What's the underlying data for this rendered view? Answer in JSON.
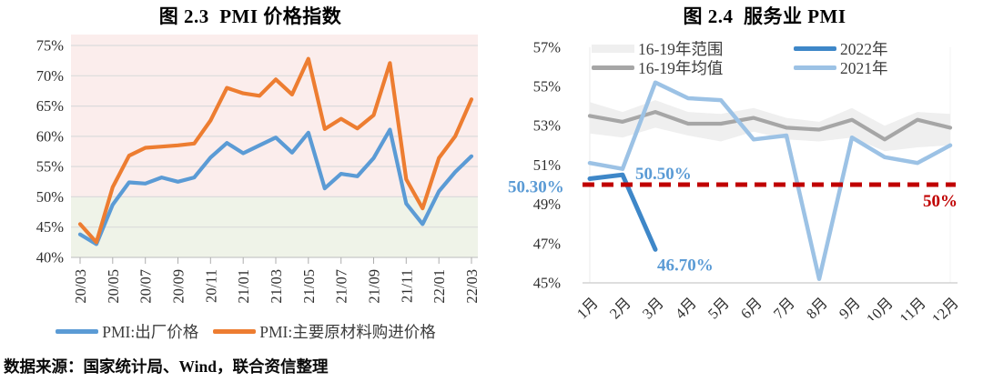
{
  "page": {
    "source_note": "数据来源：国家统计局、Wind，联合资信整理"
  },
  "chart_data": [
    {
      "type": "line",
      "title": "图 2.3  PMI 价格指数",
      "ylim": [
        40,
        75
      ],
      "y_ticks": [
        40,
        45,
        50,
        55,
        60,
        65,
        70,
        75
      ],
      "y_tick_suffix": "%",
      "threshold": 50,
      "bg_above_threshold": "#FBEDEC",
      "bg_below_threshold": "#EFF3E8",
      "grid": true,
      "legend_position": "bottom",
      "x_tick_labels": [
        "20/03",
        "20/05",
        "20/07",
        "20/09",
        "20/11",
        "21/01",
        "21/03",
        "21/05",
        "21/07",
        "21/09",
        "21/11",
        "22/01",
        "22/03"
      ],
      "series": [
        {
          "name": "PMI:出厂价格",
          "color": "#5B9BD5",
          "values": [
            43.8,
            42.2,
            48.7,
            52.4,
            52.2,
            53.2,
            52.5,
            53.2,
            56.5,
            58.9,
            57.2,
            58.5,
            59.8,
            57.3,
            60.6,
            51.4,
            53.8,
            53.4,
            56.4,
            61.1,
            48.9,
            45.5,
            50.9,
            54.1,
            56.7
          ]
        },
        {
          "name": "PMI:主要原材料购进价格",
          "color": "#ED7D31",
          "values": [
            45.5,
            42.5,
            51.6,
            56.8,
            58.1,
            58.3,
            58.5,
            58.8,
            62.6,
            68.0,
            67.1,
            66.7,
            69.4,
            66.9,
            72.8,
            61.2,
            62.9,
            61.3,
            63.5,
            72.1,
            52.9,
            48.1,
            56.4,
            60.0,
            66.1
          ]
        }
      ]
    },
    {
      "type": "line",
      "title": "图 2.4  服务业 PMI",
      "ylim": [
        45,
        57
      ],
      "y_ticks": [
        45,
        47,
        49,
        51,
        53,
        55,
        57
      ],
      "y_tick_suffix": "%",
      "grid": false,
      "legend_position": "top-inside",
      "categories": [
        "1月",
        "2月",
        "3月",
        "4月",
        "5月",
        "6月",
        "7月",
        "8月",
        "9月",
        "10月",
        "11月",
        "12月"
      ],
      "series": [
        {
          "name": "16-19年范围",
          "type": "band",
          "color": "#EFEFEF",
          "high": [
            54.2,
            53.7,
            54.3,
            53.7,
            53.6,
            53.9,
            53.4,
            53.2,
            53.9,
            53.0,
            53.7,
            53.6
          ],
          "low": [
            52.6,
            52.4,
            52.9,
            52.5,
            52.2,
            52.7,
            52.3,
            52.2,
            52.4,
            51.7,
            51.9,
            52.0
          ]
        },
        {
          "name": "16-19年均值",
          "type": "line",
          "color": "#A6A6A6",
          "values": [
            53.5,
            53.2,
            53.7,
            53.1,
            53.1,
            53.4,
            52.9,
            52.8,
            53.3,
            52.3,
            53.3,
            52.9
          ]
        },
        {
          "name": "2022年",
          "type": "line",
          "color": "#3E87C8",
          "values": [
            50.3,
            50.5,
            46.7
          ]
        },
        {
          "name": "2021年",
          "type": "line",
          "color": "#9CC2E5",
          "values": [
            51.1,
            50.8,
            55.2,
            54.4,
            54.3,
            52.3,
            52.5,
            45.2,
            52.4,
            51.4,
            51.1,
            52.0
          ]
        }
      ],
      "reference_line": {
        "value": 50,
        "label": "50%",
        "color": "#C00000",
        "style": "dashed"
      },
      "annotations": [
        {
          "text": "50.30%",
          "month_index": 0,
          "value": 50.3,
          "color": "#5B9BD5"
        },
        {
          "text": "50.50%",
          "month_index": 1,
          "value": 50.5,
          "color": "#5B9BD5"
        },
        {
          "text": "46.70%",
          "month_index": 2,
          "value": 46.7,
          "color": "#5B9BD5"
        }
      ]
    }
  ]
}
